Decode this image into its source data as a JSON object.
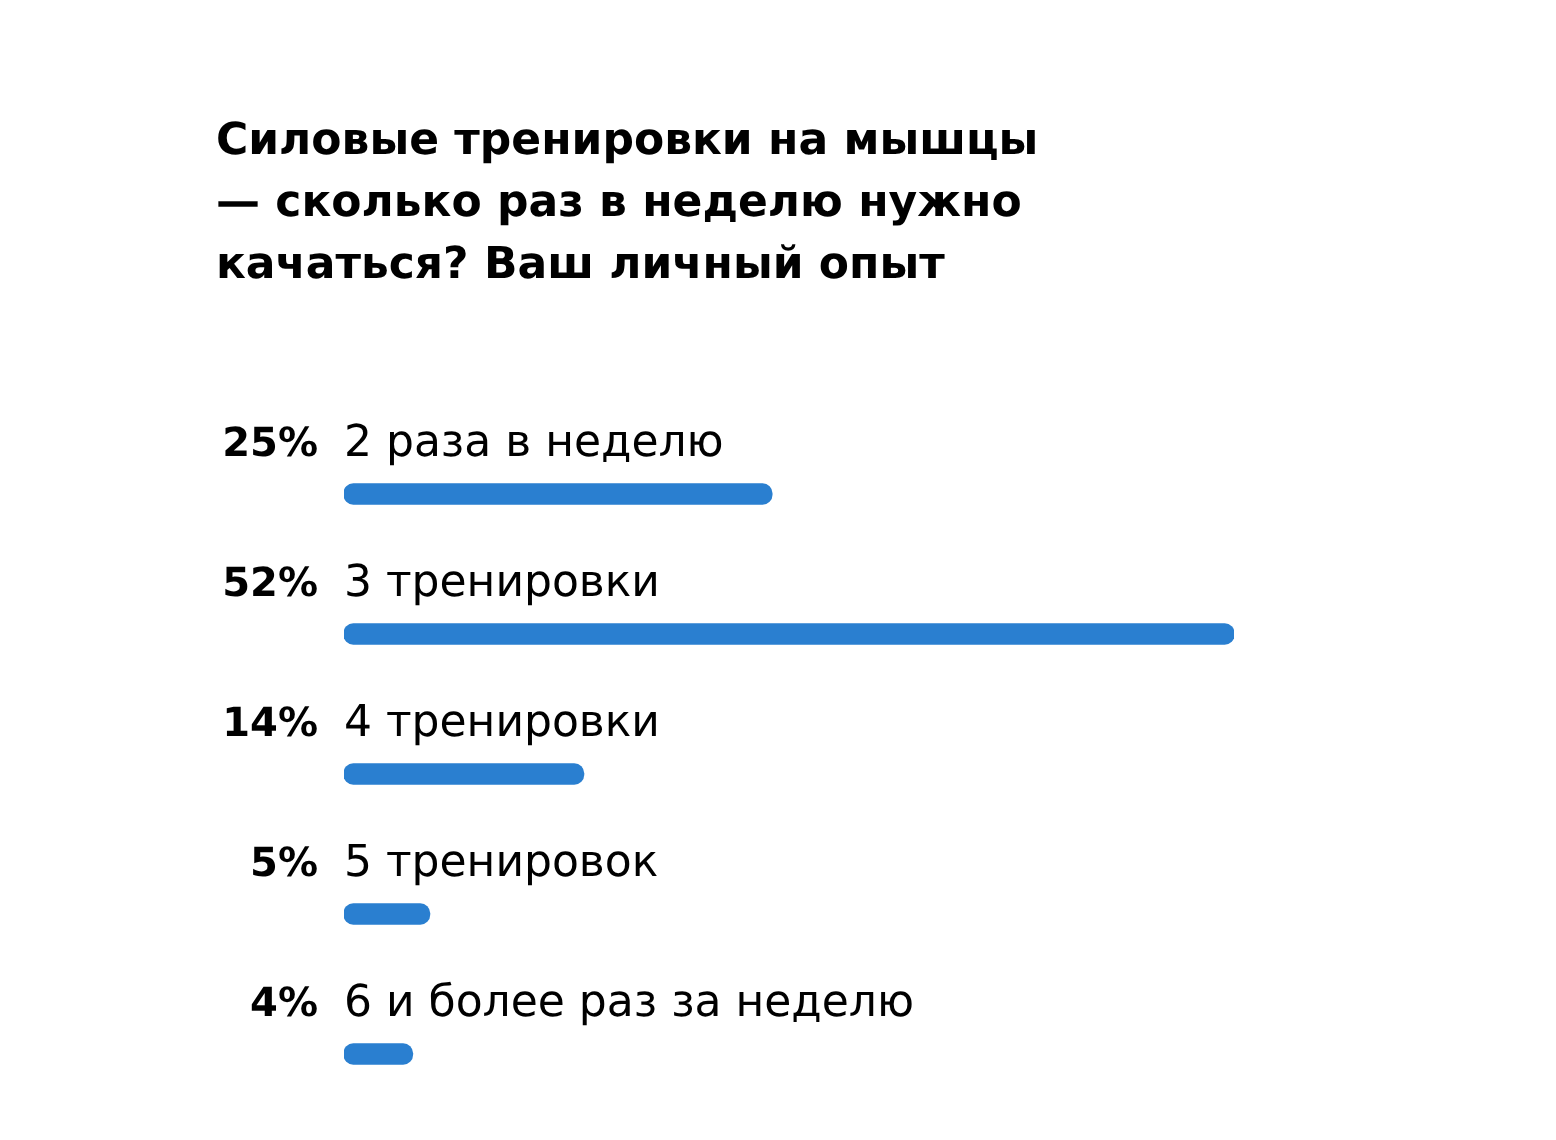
{
  "chart_data": {
    "type": "bar",
    "orientation": "horizontal",
    "title": "Силовые тренировки на мышцы — сколько раз в неделю нужно качаться? Ваш личный опыт",
    "categories": [
      "2 раза в неделю",
      "3 тренировки",
      "4 тренировки",
      "5 тренировок",
      "6 и более раз за неделю"
    ],
    "values": [
      25,
      52,
      14,
      5,
      4
    ],
    "value_labels": [
      "25%",
      "52%",
      "14%",
      "5%",
      "4%"
    ],
    "color": "#2a7fd0",
    "tick_labels": "y"
  }
}
